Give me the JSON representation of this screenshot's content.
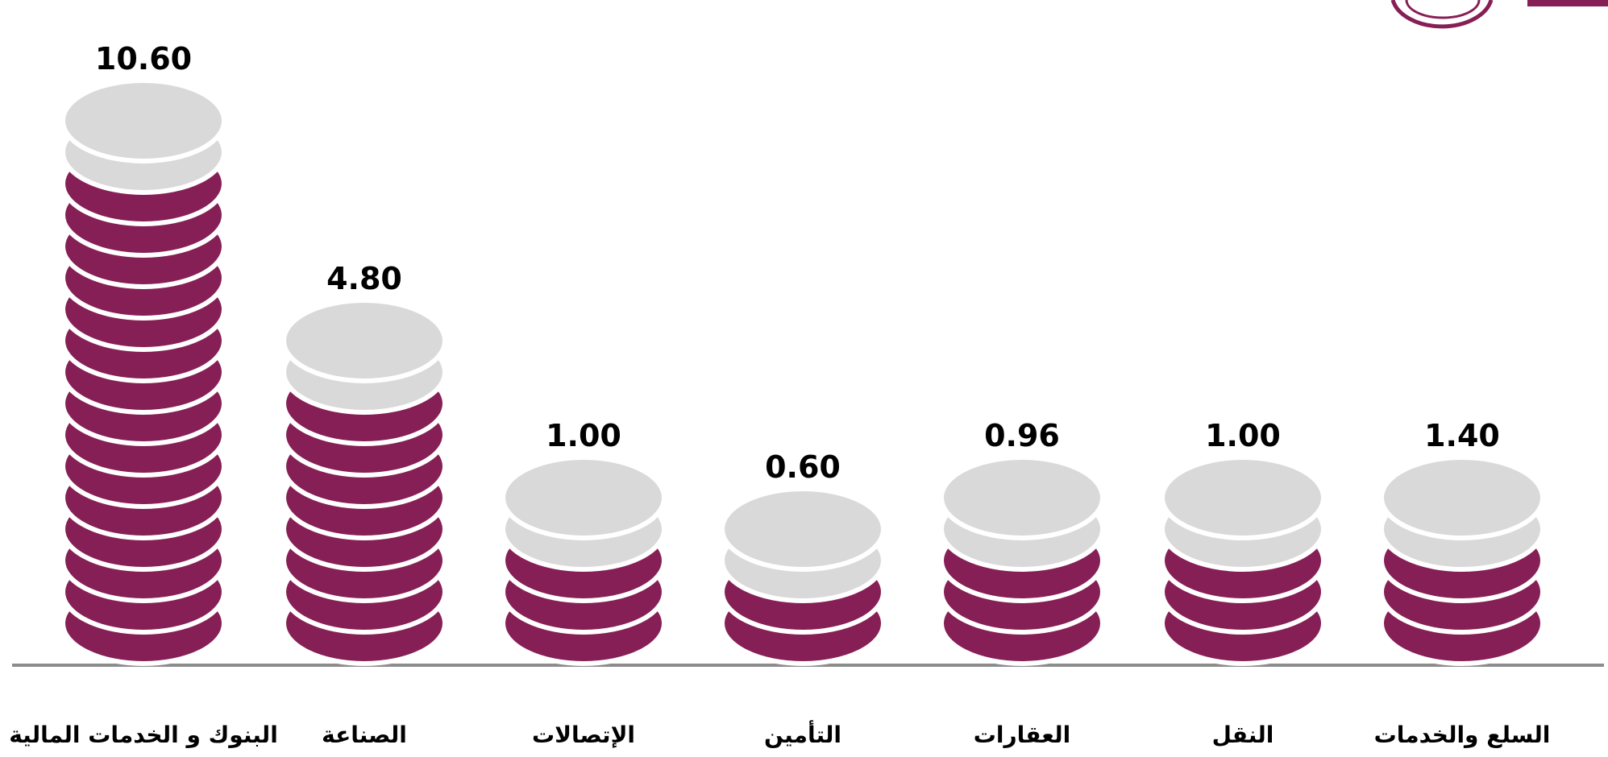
{
  "chart_data": {
    "type": "coin-stack",
    "categories": [
      "البنوك و الخدمات المالية",
      "الصناعة",
      "الإتصالات",
      "التأمين",
      "العقارات",
      "النقل",
      "السلع والخدمات"
    ],
    "values": [
      10.6,
      4.8,
      1.0,
      0.6,
      0.96,
      1.0,
      1.4
    ],
    "value_labels": [
      "10.60",
      "4.80",
      "1.00",
      "0.60",
      "0.96",
      "1.00",
      "1.40"
    ],
    "color": "#861f55",
    "top_color": "#d9d9d9"
  }
}
